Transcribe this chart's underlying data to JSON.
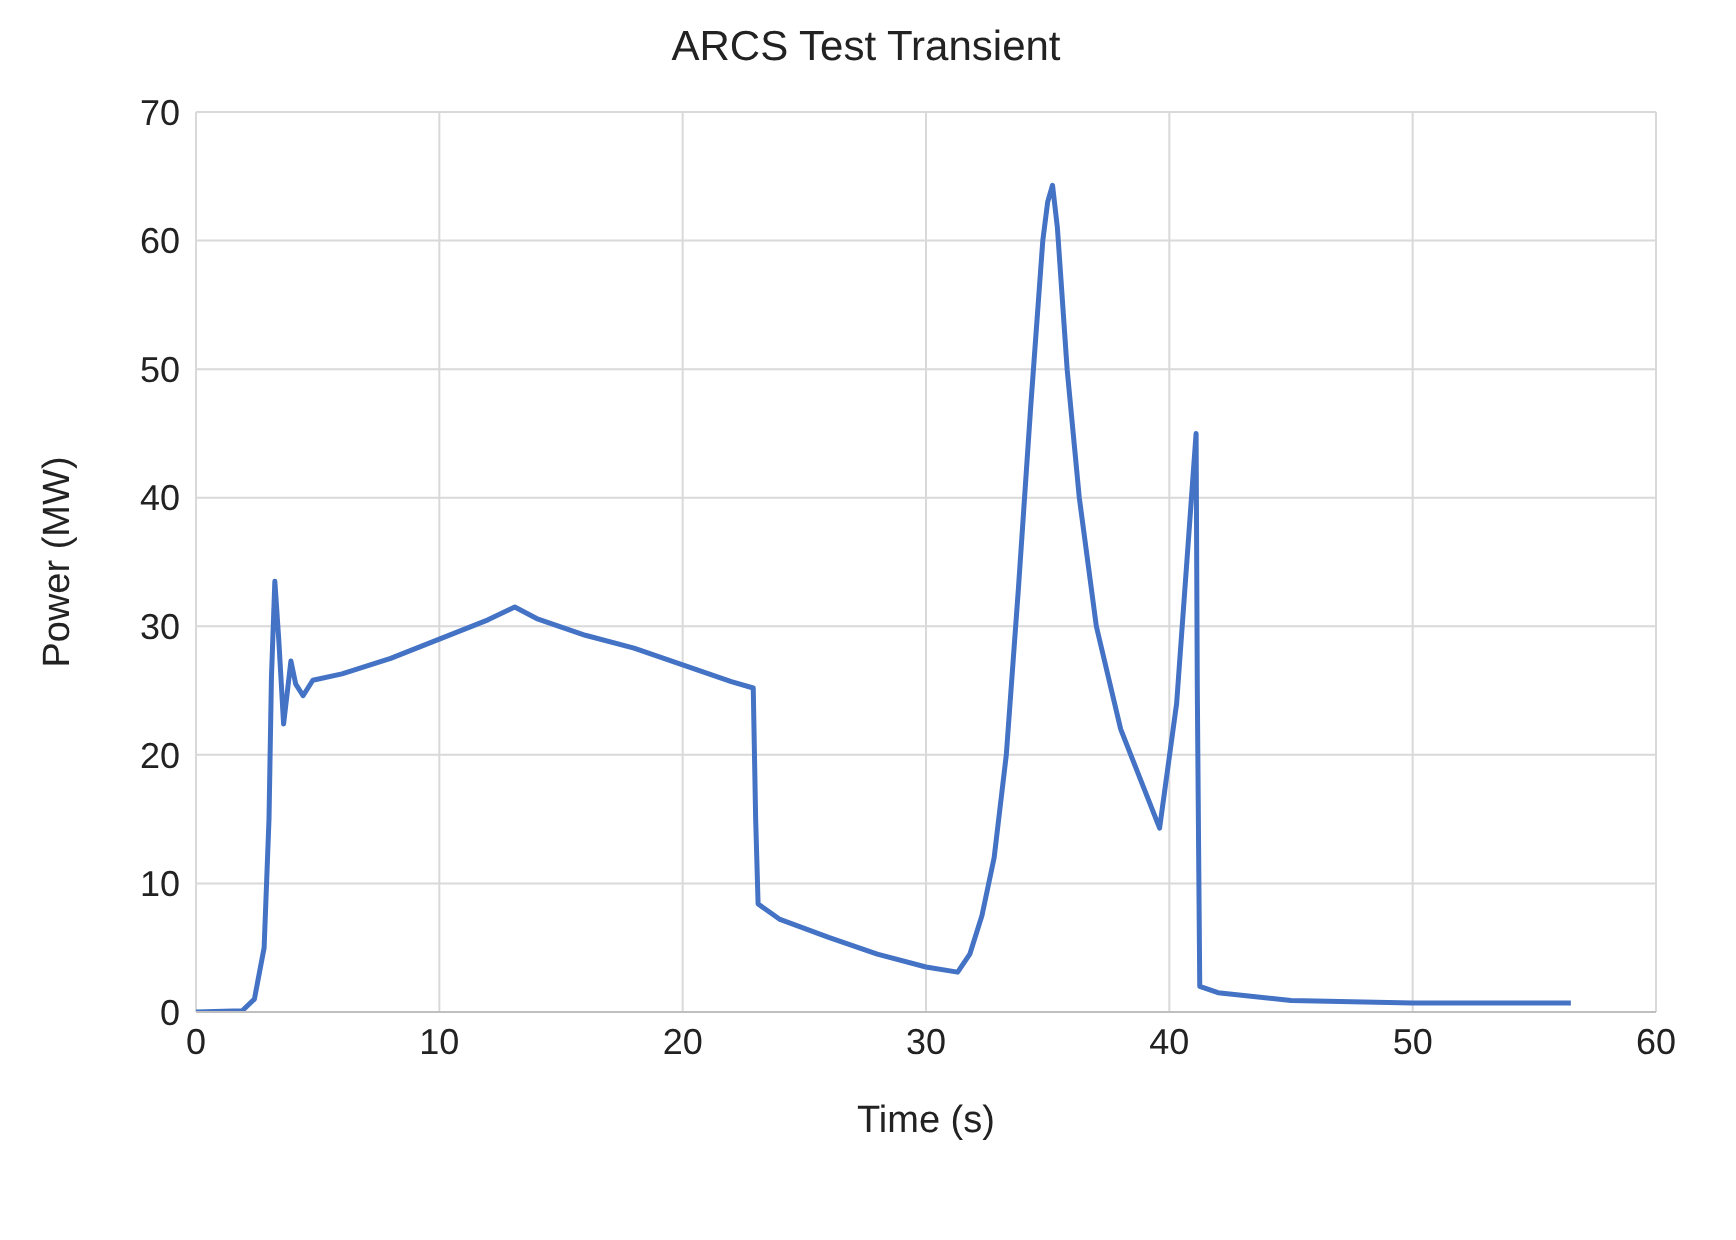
{
  "chart_data": {
    "type": "line",
    "title": "ARCS Test Transient",
    "xlabel": "Time (s)",
    "ylabel": "Power (MW)",
    "x": [
      0,
      1.9,
      2.4,
      2.8,
      3.0,
      3.1,
      3.24,
      3.4,
      3.6,
      3.9,
      4.1,
      4.4,
      4.8,
      6,
      8,
      10,
      12,
      13.1,
      14,
      16,
      18,
      20,
      22,
      22.9,
      23.0,
      23.1,
      24,
      26,
      28,
      30,
      31.3,
      31.8,
      32.3,
      32.8,
      33.3,
      33.8,
      34.3,
      34.8,
      35.0,
      35.2,
      35.4,
      35.8,
      36.3,
      37,
      38,
      39.6,
      40.3,
      41.1,
      41.15,
      41.25,
      42,
      45,
      50,
      56.5
    ],
    "series": [
      {
        "color": "#4472c4",
        "values": [
          0,
          0.1,
          1,
          5,
          15,
          26,
          33.5,
          29,
          22.4,
          27.3,
          25.5,
          24.6,
          25.8,
          26.3,
          27.5,
          29,
          30.5,
          31.5,
          30.6,
          29.3,
          28.3,
          27,
          25.7,
          25.2,
          15,
          8.4,
          7.2,
          5.8,
          4.5,
          3.5,
          3.1,
          4.5,
          7.5,
          12,
          20,
          33,
          47,
          60,
          63,
          64.3,
          61,
          50,
          40,
          30,
          22,
          14.3,
          24,
          45,
          25,
          2,
          1.5,
          0.9,
          0.7,
          0.7
        ]
      }
    ],
    "xlim": [
      0,
      60
    ],
    "xticks": [
      0,
      10,
      20,
      30,
      40,
      50,
      60
    ],
    "ylim": [
      0,
      70
    ],
    "yticks": [
      0,
      10,
      20,
      30,
      40,
      50,
      60,
      70
    ],
    "grid": true,
    "legend": false,
    "marker": "none",
    "line_style": "solid"
  }
}
